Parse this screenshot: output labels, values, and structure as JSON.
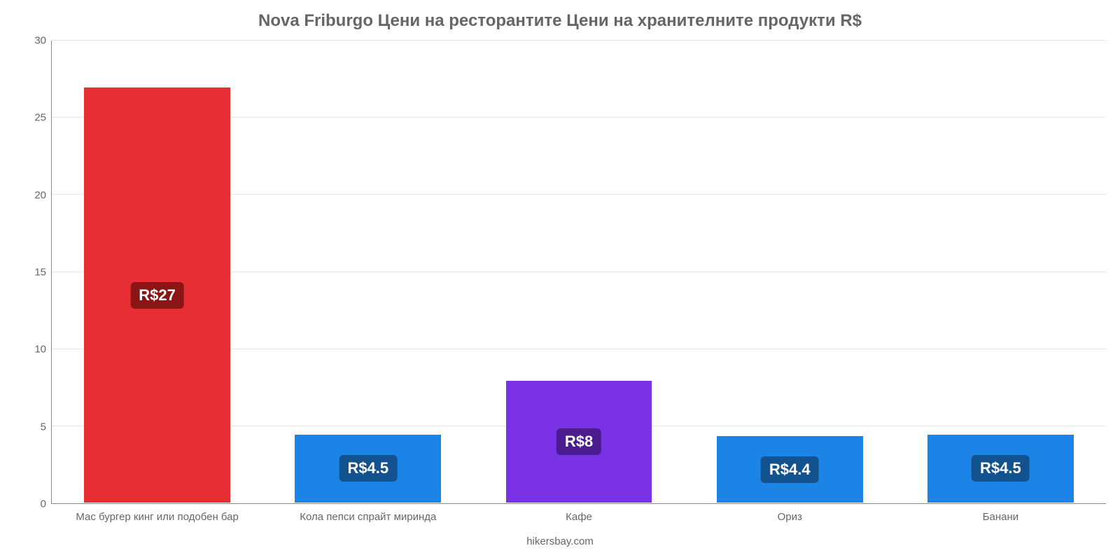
{
  "chart": {
    "type": "bar",
    "title": "Nova Friburgo Цени на ресторантите Цени на хранителните продукти R$",
    "title_color": "#666666",
    "title_fontsize": 24,
    "background_color": "#ffffff",
    "grid_color": "#e6e6e6",
    "axis_label_color": "#666666",
    "axis_label_fontsize": 15,
    "ylim_min": 0,
    "ylim_max": 30,
    "ytick_step": 5,
    "yticks": [
      0,
      5,
      10,
      15,
      20,
      25,
      30
    ],
    "bar_width_pct": 70,
    "value_label_fontsize": 22,
    "value_label_text_color": "#ffffff",
    "categories": [
      "Мас бургер кинг или подобен бар",
      "Кола пепси спрайт миринда",
      "Кафе",
      "Ориз",
      "Банани"
    ],
    "values": [
      27,
      4.5,
      8,
      4.4,
      4.5
    ],
    "value_labels": [
      "R$27",
      "R$4.5",
      "R$8",
      "R$4.4",
      "R$4.5"
    ],
    "bar_colors": [
      "#e62e34",
      "#1c84e6",
      "#7a32e6",
      "#1c84e6",
      "#1c84e6"
    ],
    "badge_colors": [
      "#8a1515",
      "#12538f",
      "#4b1b90",
      "#12538f",
      "#12538f"
    ],
    "credit": "hikersbay.com"
  }
}
